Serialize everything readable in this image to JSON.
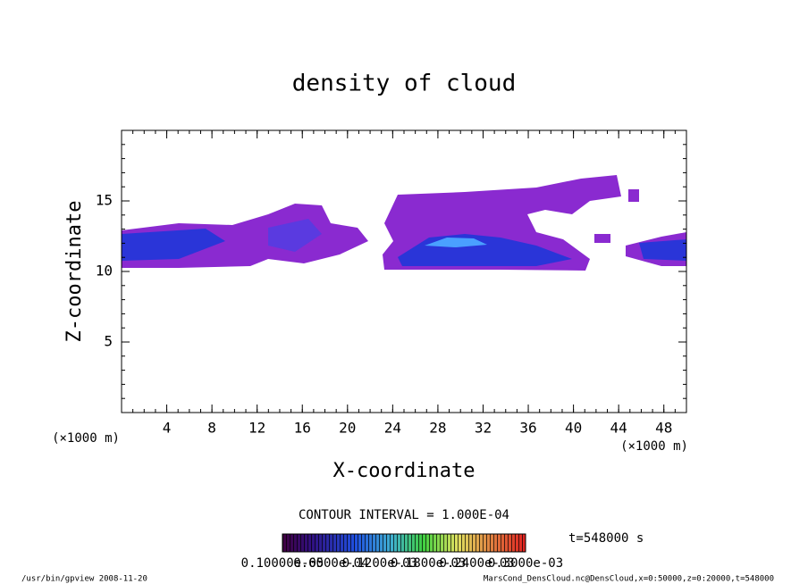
{
  "chart_data": {
    "type": "contour",
    "title": "density of cloud",
    "x_label": "X-coordinate",
    "y_label": "Z-coordinate",
    "x_unit_label": "(×1000 m)",
    "y_unit_label": "(×1000 m)",
    "xlim": [
      0,
      50
    ],
    "ylim": [
      0,
      20
    ],
    "xticks": [
      4,
      8,
      12,
      16,
      20,
      24,
      28,
      32,
      36,
      40,
      44,
      48
    ],
    "yticks": [
      5,
      10,
      15
    ],
    "contour_interval_label": "CONTOUR INTERVAL = 1.000E-04",
    "time_label": "t=548000 s",
    "colorbar_labels": [
      "0.10000e-05",
      "0.6000e-04",
      "0.1200e-03",
      "0.1800e-03",
      "0.2400e-03",
      "0.3000e-03"
    ],
    "footer_left": "/usr/bin/gpview  2008-11-20",
    "footer_right": "MarsCond_DensCloud.nc@DensCloud,x=0:50000,z=0:20000,t=548000"
  }
}
